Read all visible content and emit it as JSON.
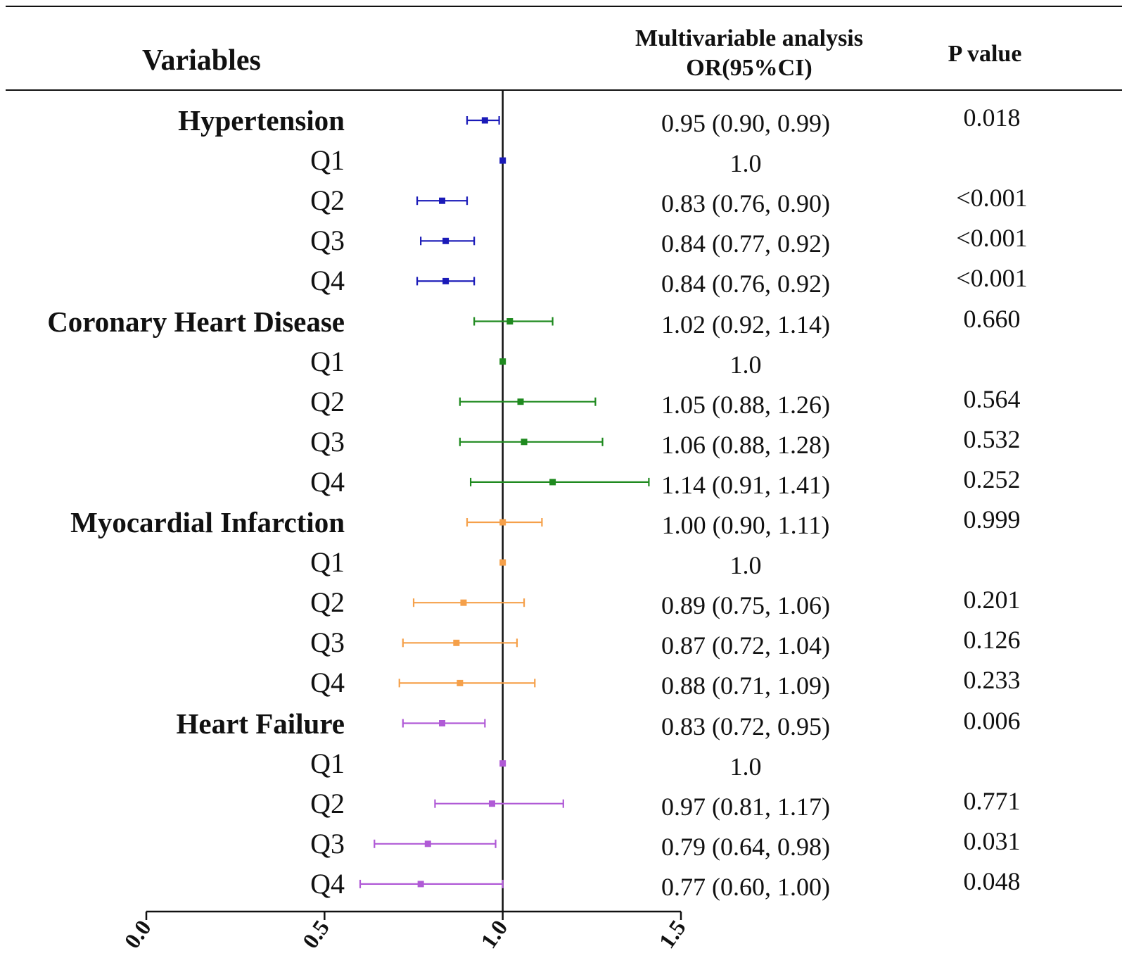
{
  "header": {
    "variables": "Variables",
    "mv_line1": "Multivariable analysis",
    "mv_line2": "OR(95%CI)",
    "p_value": "P value"
  },
  "chart_data": {
    "type": "forest",
    "title": "",
    "xlabel": "",
    "xlim": [
      0.0,
      1.5
    ],
    "xticks": [
      "0.0",
      "0.5",
      "1.0",
      "1.5"
    ],
    "reference_line": 1.0,
    "colors": {
      "Hypertension": "#1a1ab8",
      "Coronary Heart Disease": "#1f8a1f",
      "Myocardial Infarction": "#f5a04a",
      "Heart Failure": "#b05ad6"
    },
    "rows": [
      {
        "label": "Hypertension",
        "group": "Hypertension",
        "is_group": true,
        "or": 0.95,
        "lo": 0.9,
        "hi": 0.99,
        "text": "0.95 (0.90, 0.99)",
        "p": "0.018"
      },
      {
        "label": "Q1",
        "group": "Hypertension",
        "is_group": false,
        "or": 1.0,
        "lo": 1.0,
        "hi": 1.0,
        "text": "1.0",
        "p": ""
      },
      {
        "label": "Q2",
        "group": "Hypertension",
        "is_group": false,
        "or": 0.83,
        "lo": 0.76,
        "hi": 0.9,
        "text": "0.83 (0.76, 0.90)",
        "p": "<0.001"
      },
      {
        "label": "Q3",
        "group": "Hypertension",
        "is_group": false,
        "or": 0.84,
        "lo": 0.77,
        "hi": 0.92,
        "text": "0.84 (0.77, 0.92)",
        "p": "<0.001"
      },
      {
        "label": "Q4",
        "group": "Hypertension",
        "is_group": false,
        "or": 0.84,
        "lo": 0.76,
        "hi": 0.92,
        "text": "0.84 (0.76, 0.92)",
        "p": "<0.001"
      },
      {
        "label": "Coronary Heart Disease",
        "group": "Coronary Heart Disease",
        "is_group": true,
        "or": 1.02,
        "lo": 0.92,
        "hi": 1.14,
        "text": "1.02 (0.92, 1.14)",
        "p": "0.660"
      },
      {
        "label": "Q1",
        "group": "Coronary Heart Disease",
        "is_group": false,
        "or": 1.0,
        "lo": 1.0,
        "hi": 1.0,
        "text": "1.0",
        "p": ""
      },
      {
        "label": "Q2",
        "group": "Coronary Heart Disease",
        "is_group": false,
        "or": 1.05,
        "lo": 0.88,
        "hi": 1.26,
        "text": "1.05 (0.88, 1.26)",
        "p": "0.564"
      },
      {
        "label": "Q3",
        "group": "Coronary Heart Disease",
        "is_group": false,
        "or": 1.06,
        "lo": 0.88,
        "hi": 1.28,
        "text": "1.06 (0.88, 1.28)",
        "p": "0.532"
      },
      {
        "label": "Q4",
        "group": "Coronary Heart Disease",
        "is_group": false,
        "or": 1.14,
        "lo": 0.91,
        "hi": 1.41,
        "text": "1.14 (0.91, 1.41)",
        "p": "0.252"
      },
      {
        "label": "Myocardial Infarction",
        "group": "Myocardial Infarction",
        "is_group": true,
        "or": 1.0,
        "lo": 0.9,
        "hi": 1.11,
        "text": "1.00 (0.90, 1.11)",
        "p": "0.999"
      },
      {
        "label": "Q1",
        "group": "Myocardial Infarction",
        "is_group": false,
        "or": 1.0,
        "lo": 1.0,
        "hi": 1.0,
        "text": "1.0",
        "p": ""
      },
      {
        "label": "Q2",
        "group": "Myocardial Infarction",
        "is_group": false,
        "or": 0.89,
        "lo": 0.75,
        "hi": 1.06,
        "text": "0.89 (0.75, 1.06)",
        "p": "0.201"
      },
      {
        "label": "Q3",
        "group": "Myocardial Infarction",
        "is_group": false,
        "or": 0.87,
        "lo": 0.72,
        "hi": 1.04,
        "text": "0.87 (0.72, 1.04)",
        "p": "0.126"
      },
      {
        "label": "Q4",
        "group": "Myocardial Infarction",
        "is_group": false,
        "or": 0.88,
        "lo": 0.71,
        "hi": 1.09,
        "text": "0.88 (0.71, 1.09)",
        "p": "0.233"
      },
      {
        "label": "Heart Failure",
        "group": "Heart Failure",
        "is_group": true,
        "or": 0.83,
        "lo": 0.72,
        "hi": 0.95,
        "text": "0.83 (0.72, 0.95)",
        "p": "0.006"
      },
      {
        "label": "Q1",
        "group": "Heart Failure",
        "is_group": false,
        "or": 1.0,
        "lo": 1.0,
        "hi": 1.0,
        "text": "1.0",
        "p": ""
      },
      {
        "label": "Q2",
        "group": "Heart Failure",
        "is_group": false,
        "or": 0.97,
        "lo": 0.81,
        "hi": 1.17,
        "text": "0.97 (0.81, 1.17)",
        "p": "0.771"
      },
      {
        "label": "Q3",
        "group": "Heart Failure",
        "is_group": false,
        "or": 0.79,
        "lo": 0.64,
        "hi": 0.98,
        "text": "0.79 (0.64, 0.98)",
        "p": "0.031"
      },
      {
        "label": "Q4",
        "group": "Heart Failure",
        "is_group": false,
        "or": 0.77,
        "lo": 0.6,
        "hi": 1.0,
        "text": "0.77 (0.60, 1.00)",
        "p": "0.048"
      }
    ]
  }
}
